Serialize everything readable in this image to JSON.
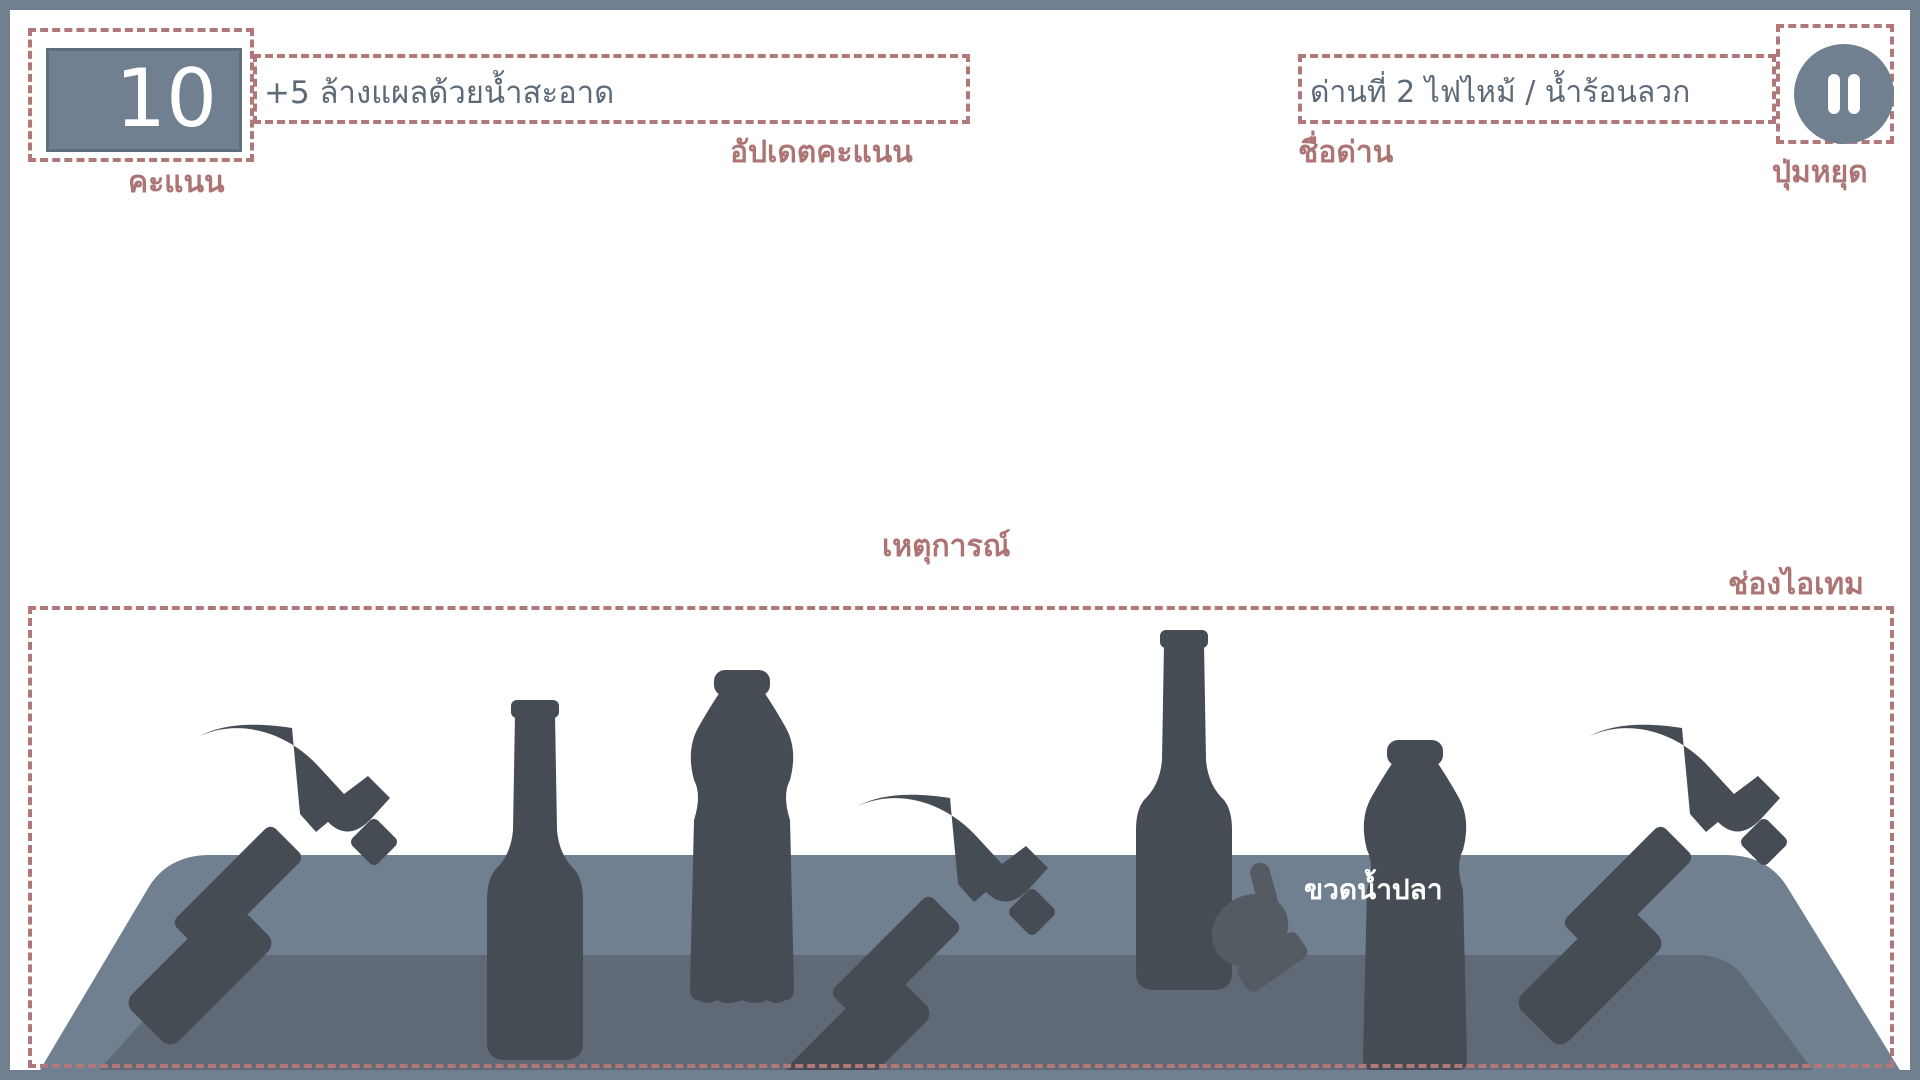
{
  "hud": {
    "score": "10",
    "score_update": "+5 ล้างแผลด้วยน้ำสะอาด",
    "level_name": "ด่านที่ 2 ไฟไหม้ / น้ำร้อนลวก"
  },
  "annotations": {
    "score": "คะแนน",
    "score_update": "อัปเดตคะแนน",
    "level_name": "ชื่อด่าน",
    "pause": "ปุ่มหยุด",
    "event": "เหตุการณ์",
    "item_slot": "ช่องไอเทม"
  },
  "hover_label": "ขวดน้ำปลา",
  "items": [
    {
      "id": "hammer-1",
      "icon": "hammer-icon"
    },
    {
      "id": "glass-bottle-1",
      "icon": "glass-bottle-icon"
    },
    {
      "id": "plastic-bottle-1",
      "icon": "plastic-bottle-icon"
    },
    {
      "id": "hammer-2",
      "icon": "hammer-icon"
    },
    {
      "id": "glass-bottle-2",
      "icon": "glass-bottle-icon"
    },
    {
      "id": "plastic-bottle-2",
      "icon": "plastic-bottle-icon"
    },
    {
      "id": "hammer-3",
      "icon": "hammer-icon"
    }
  ],
  "colors": {
    "frame": "#708090",
    "annotation": "#ad7474",
    "tray": "#708090",
    "tray_inner": "#5f6a76",
    "item": "#464c53",
    "glove": "#545b63"
  }
}
